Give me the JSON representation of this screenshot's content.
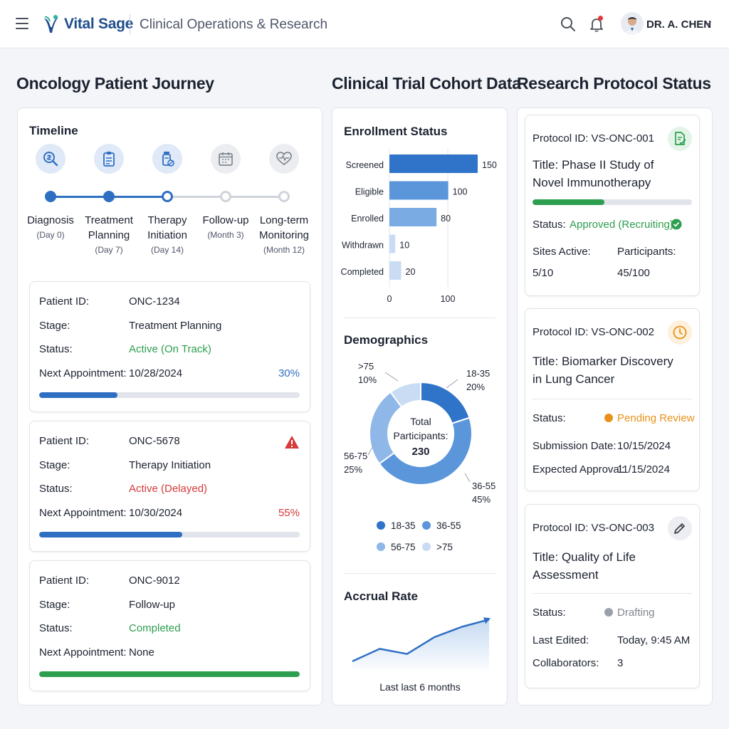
{
  "header": {
    "brand": "Vital Sage",
    "subtitle": "Clinical Operations & Research",
    "user_name": "DR. A. CHEN"
  },
  "colors": {
    "primary": "#2f6fc2",
    "success": "#2e9e4f",
    "danger": "#d63a3a",
    "warning": "#e8921a",
    "muted": "#9aa0aa"
  },
  "sections": {
    "journey": "Oncology Patient Journey",
    "cohort": "Clinical Trial Cohort Data",
    "protocols": "Research Protocol Status"
  },
  "timeline": {
    "title": "Timeline",
    "steps": [
      {
        "label": "Diagnosis",
        "sub": "(Day 0)",
        "icon": "diagnosis-magnifier-icon"
      },
      {
        "label": "Treatment Planning",
        "sub": "(Day 7)",
        "icon": "clipboard-icon"
      },
      {
        "label": "Therapy Initiation",
        "sub": "(Day 14)",
        "icon": "medication-bottle-icon"
      },
      {
        "label": "Follow-up",
        "sub": "(Month 3)",
        "icon": "calendar-icon"
      },
      {
        "label": "Long-term Monitoring",
        "sub": "(Month 12)",
        "icon": "heart-pulse-icon"
      }
    ]
  },
  "patients": [
    {
      "id_label": "Patient ID:",
      "id": "ONC-1234",
      "stage_label": "Stage:",
      "stage": "Treatment Planning",
      "status_label": "Status:",
      "status": "Active (On Track)",
      "appt_label": "Next Appointment:",
      "appt": "10/28/2024",
      "progress_text": "30%",
      "progress": 30
    },
    {
      "id_label": "Patient ID:",
      "id": "ONC-5678",
      "stage_label": "Stage:",
      "stage": "Therapy Initiation",
      "status_label": "Status:",
      "status": "Active (Delayed)",
      "appt_label": "Next Appointment:",
      "appt": "10/30/2024",
      "progress_text": "55%",
      "progress": 55
    },
    {
      "id_label": "Patient ID:",
      "id": "ONC-9012",
      "stage_label": "Stage:",
      "stage": "Follow-up",
      "status_label": "Status:",
      "status": "Completed",
      "appt_label": "Next Appointment:",
      "appt": "None",
      "progress": 100
    }
  ],
  "chart_data": [
    {
      "type": "bar",
      "title": "Enrollment Status",
      "orientation": "horizontal",
      "categories": [
        "Screened",
        "Eligible",
        "Enrolled",
        "Withdrawn",
        "Completed"
      ],
      "values": [
        150,
        100,
        80,
        10,
        20
      ],
      "xlim": [
        0,
        150
      ],
      "ticks": [
        "0",
        "100"
      ]
    },
    {
      "type": "pie",
      "title": "Demographics",
      "donut": true,
      "center_label": "Total Participants:",
      "center_value": "230",
      "labels": [
        "18-35",
        "36-55",
        "56-75",
        ">75"
      ],
      "values": [
        20,
        45,
        25,
        10
      ],
      "value_labels": [
        "20%",
        "45%",
        "25%",
        "10%"
      ],
      "colors": [
        "#2f74c8",
        "#5b96db",
        "#8fb8e8",
        "#c9dcf3"
      ]
    },
    {
      "type": "area",
      "title": "Accrual Rate",
      "caption": "Last last 6 months",
      "x": [
        1,
        2,
        3,
        4,
        5,
        6
      ],
      "y": [
        5,
        22,
        15,
        38,
        52,
        62
      ],
      "ylim": [
        0,
        70
      ]
    }
  ],
  "protocols": [
    {
      "id_label": "Protocol ID:",
      "id": "VS-ONC-001",
      "title_label": "Title:",
      "title": "Phase II Study of Novel Immunotherapy",
      "status_label": "Status:",
      "status": "Approved (Recruiting)",
      "f1_label": "Sites Active:",
      "f1": "5/10",
      "f2_label": "Participants:",
      "f2": "45/100",
      "progress": 45
    },
    {
      "id_label": "Protocol ID:",
      "id": "VS-ONC-002",
      "title_label": "Title:",
      "title": "Biomarker Discovery in Lung Cancer",
      "status_label": "Status:",
      "status": "Pending Review",
      "f1_label": "Submission Date:",
      "f1": "10/15/2024",
      "f2_label": "Expected Approval:",
      "f2": "11/15/2024"
    },
    {
      "id_label": "Protocol ID:",
      "id": "VS-ONC-003",
      "title_label": "Title:",
      "title": "Quality of Life Assessment",
      "status_label": "Status:",
      "status": "Drafting",
      "f1_label": "Last Edited:",
      "f1": "Today, 9:45 AM",
      "f2_label": "Collaborators:",
      "f2": "3"
    }
  ]
}
